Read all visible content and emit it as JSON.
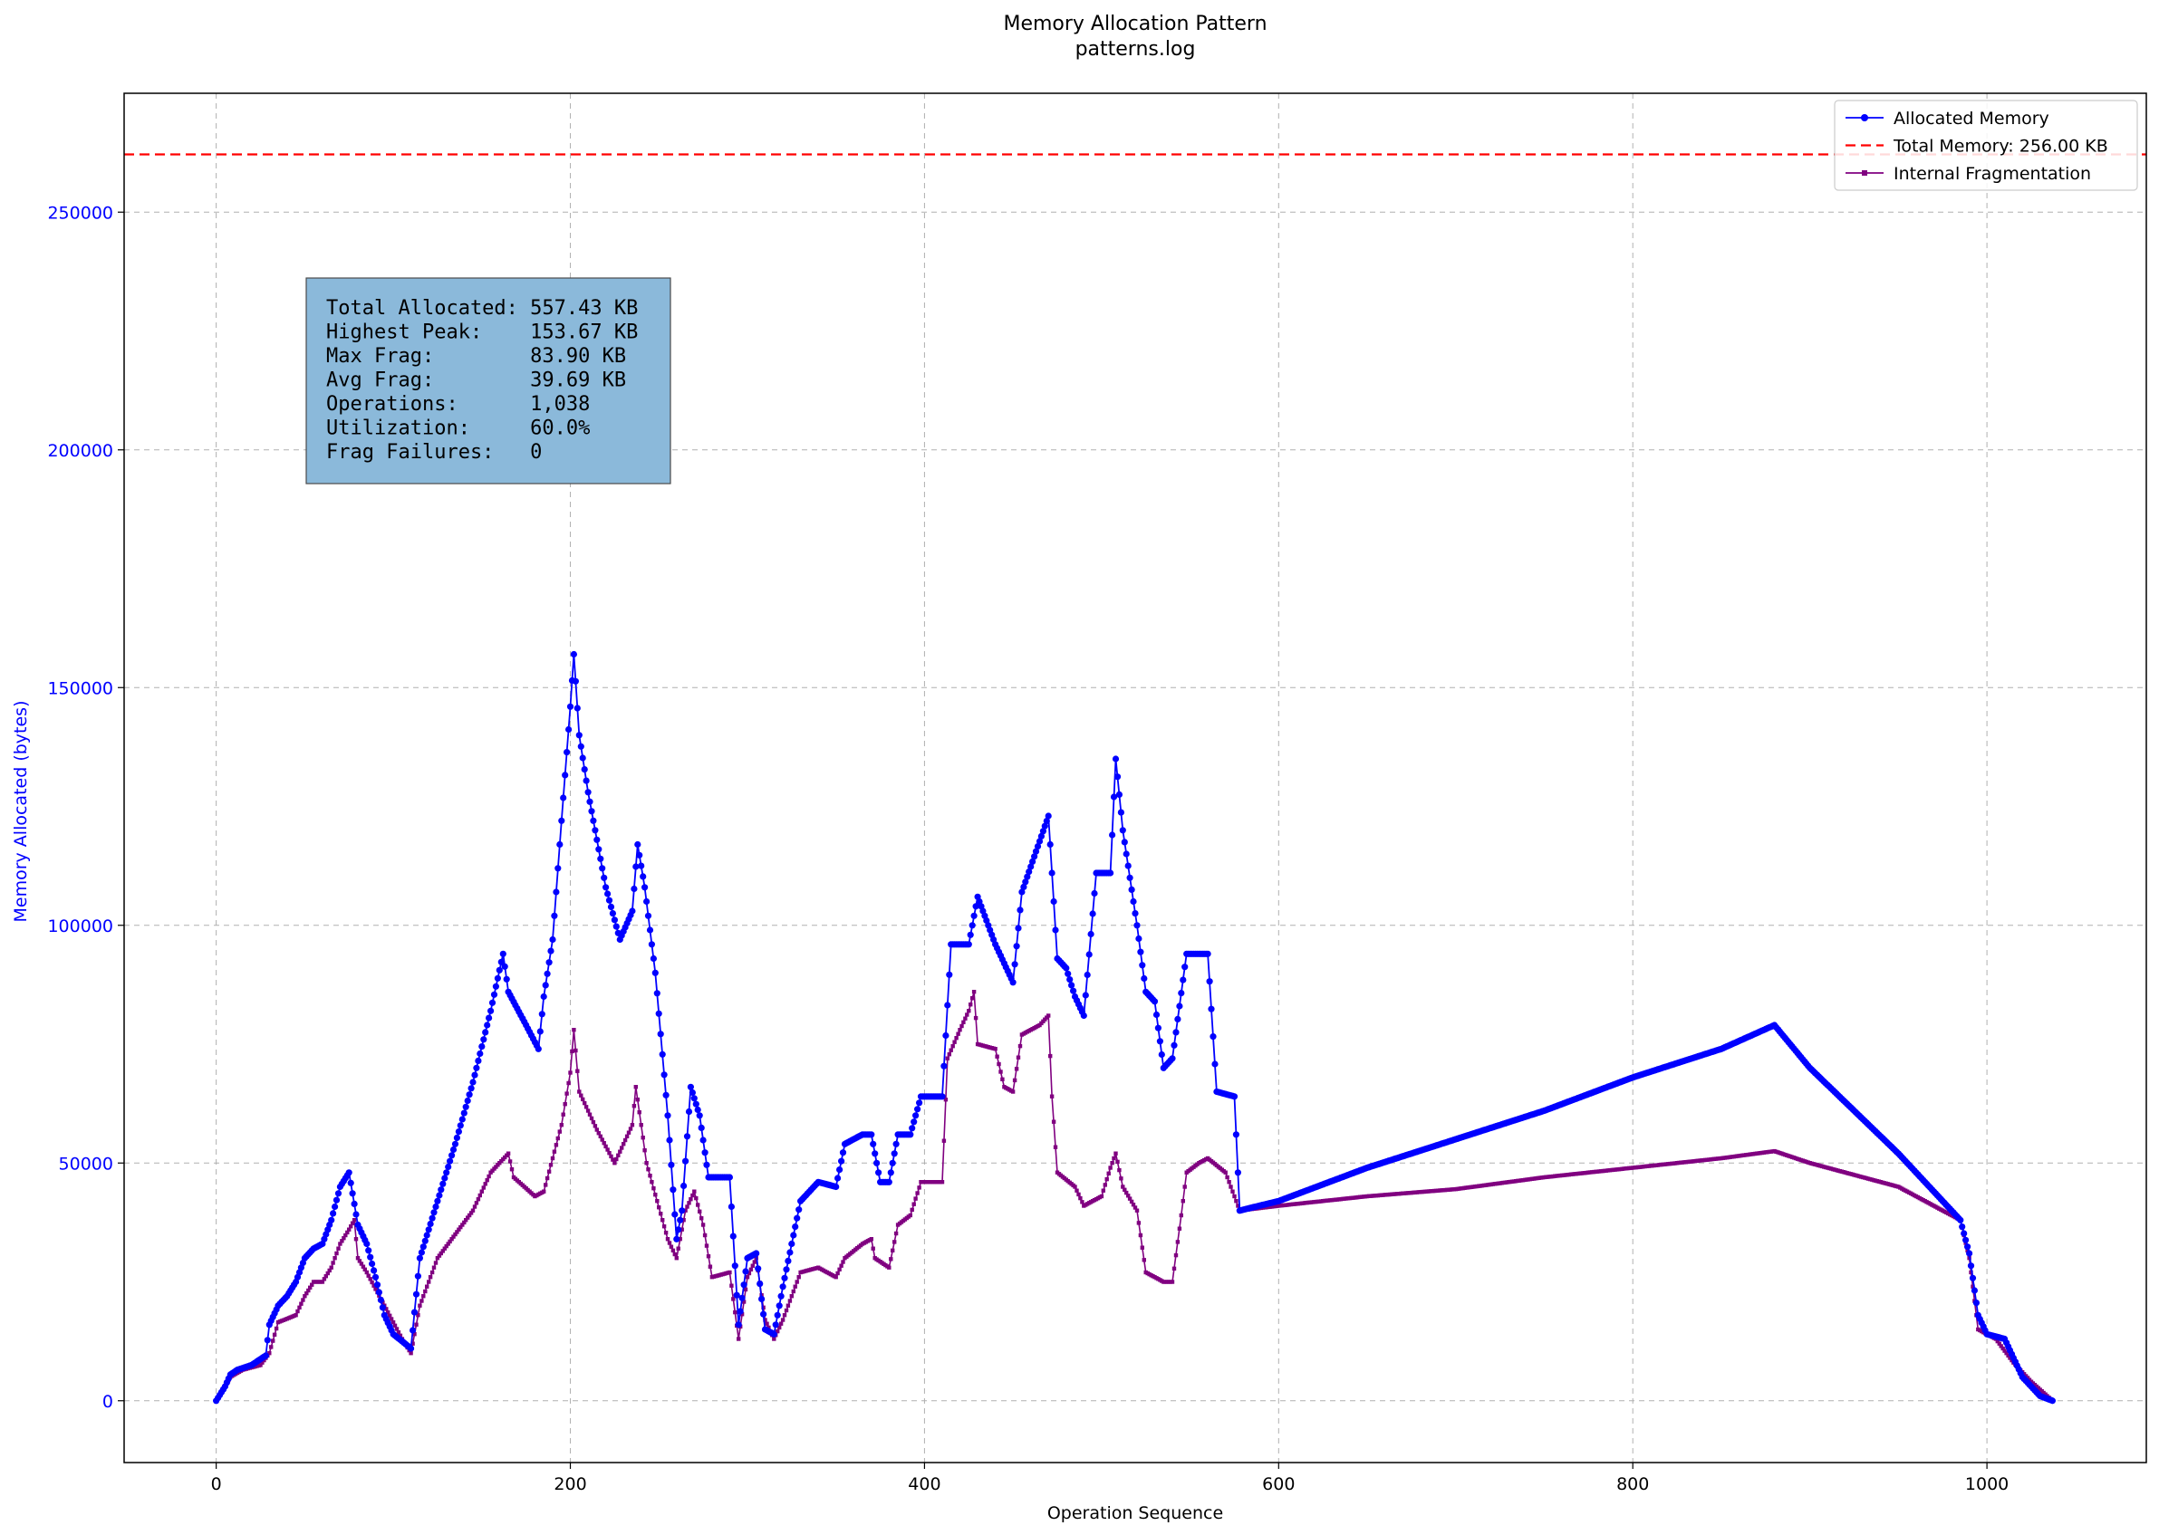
{
  "chart_data": {
    "type": "line",
    "title": "Memory Allocation Pattern",
    "subtitle": "patterns.log",
    "xlabel": "Operation Sequence",
    "ylabel": "Memory Allocated (bytes)",
    "xlim": [
      -52,
      1090
    ],
    "ylim": [
      -13000,
      275000
    ],
    "x_ticks": [
      0,
      200,
      400,
      600,
      800,
      1000
    ],
    "y_ticks": [
      0,
      50000,
      100000,
      150000,
      200000,
      250000
    ],
    "grid": true,
    "legend_position": "top-right",
    "colors": {
      "allocated": "#0000ff",
      "total": "#ff0000",
      "fragmentation": "#800080",
      "stats_box": "#8bb9da"
    },
    "reference_line": {
      "name": "Total Memory: 256.00 KB",
      "y": 262144,
      "style": "dashed"
    },
    "series": [
      {
        "name": "Allocated Memory",
        "marker": "circle",
        "points": [
          [
            0,
            0
          ],
          [
            5,
            3000
          ],
          [
            8,
            5500
          ],
          [
            12,
            6500
          ],
          [
            20,
            7500
          ],
          [
            28,
            9500
          ],
          [
            30,
            16000
          ],
          [
            35,
            20000
          ],
          [
            40,
            22000
          ],
          [
            45,
            25000
          ],
          [
            50,
            30000
          ],
          [
            55,
            32000
          ],
          [
            60,
            33000
          ],
          [
            65,
            38000
          ],
          [
            70,
            45000
          ],
          [
            75,
            48000
          ],
          [
            80,
            37000
          ],
          [
            85,
            33000
          ],
          [
            90,
            26000
          ],
          [
            95,
            18000
          ],
          [
            100,
            14000
          ],
          [
            110,
            11000
          ],
          [
            115,
            30000
          ],
          [
            125,
            42000
          ],
          [
            135,
            54000
          ],
          [
            145,
            67000
          ],
          [
            155,
            82000
          ],
          [
            162,
            94000
          ],
          [
            165,
            86000
          ],
          [
            175,
            79000
          ],
          [
            182,
            74000
          ],
          [
            185,
            85000
          ],
          [
            190,
            97000
          ],
          [
            195,
            122000
          ],
          [
            200,
            146000
          ],
          [
            202,
            157000
          ],
          [
            205,
            140000
          ],
          [
            210,
            128000
          ],
          [
            220,
            108000
          ],
          [
            228,
            97000
          ],
          [
            235,
            103000
          ],
          [
            238,
            117000
          ],
          [
            242,
            108000
          ],
          [
            248,
            90000
          ],
          [
            255,
            60000
          ],
          [
            260,
            34000
          ],
          [
            263,
            40000
          ],
          [
            268,
            66000
          ],
          [
            273,
            60000
          ],
          [
            278,
            47000
          ],
          [
            290,
            47000
          ],
          [
            295,
            16000
          ],
          [
            300,
            30000
          ],
          [
            305,
            31000
          ],
          [
            310,
            15000
          ],
          [
            315,
            14000
          ],
          [
            320,
            24000
          ],
          [
            330,
            42000
          ],
          [
            340,
            46000
          ],
          [
            350,
            45000
          ],
          [
            355,
            54000
          ],
          [
            365,
            56000
          ],
          [
            370,
            56000
          ],
          [
            375,
            46000
          ],
          [
            380,
            46000
          ],
          [
            385,
            56000
          ],
          [
            392,
            56000
          ],
          [
            398,
            64000
          ],
          [
            410,
            64000
          ],
          [
            415,
            96000
          ],
          [
            425,
            96000
          ],
          [
            430,
            106000
          ],
          [
            440,
            96000
          ],
          [
            450,
            88000
          ],
          [
            455,
            107000
          ],
          [
            470,
            123000
          ],
          [
            475,
            93000
          ],
          [
            480,
            91000
          ],
          [
            485,
            85000
          ],
          [
            490,
            81000
          ],
          [
            497,
            111000
          ],
          [
            505,
            111000
          ],
          [
            508,
            135000
          ],
          [
            512,
            120000
          ],
          [
            520,
            100000
          ],
          [
            525,
            86000
          ],
          [
            530,
            84000
          ],
          [
            535,
            70000
          ],
          [
            540,
            72000
          ],
          [
            548,
            94000
          ],
          [
            560,
            94000
          ],
          [
            565,
            65000
          ],
          [
            575,
            64000
          ],
          [
            578,
            40000
          ],
          [
            600,
            42000
          ],
          [
            650,
            49000
          ],
          [
            700,
            55000
          ],
          [
            750,
            61000
          ],
          [
            800,
            68000
          ],
          [
            850,
            74000
          ],
          [
            880,
            79000
          ],
          [
            900,
            70000
          ],
          [
            950,
            52000
          ],
          [
            985,
            38000
          ],
          [
            990,
            31000
          ],
          [
            995,
            18000
          ],
          [
            1000,
            14000
          ],
          [
            1010,
            13000
          ],
          [
            1020,
            5000
          ],
          [
            1030,
            1000
          ],
          [
            1037,
            0
          ]
        ]
      },
      {
        "name": "Internal Fragmentation",
        "marker": "square",
        "points": [
          [
            0,
            0
          ],
          [
            5,
            3000
          ],
          [
            8,
            5000
          ],
          [
            15,
            6500
          ],
          [
            25,
            7500
          ],
          [
            30,
            10000
          ],
          [
            35,
            16500
          ],
          [
            45,
            18000
          ],
          [
            50,
            22000
          ],
          [
            55,
            25000
          ],
          [
            60,
            25000
          ],
          [
            65,
            28000
          ],
          [
            70,
            33000
          ],
          [
            75,
            36000
          ],
          [
            78,
            38000
          ],
          [
            80,
            30000
          ],
          [
            85,
            27000
          ],
          [
            95,
            20000
          ],
          [
            105,
            13000
          ],
          [
            110,
            10000
          ],
          [
            115,
            20000
          ],
          [
            125,
            30000
          ],
          [
            135,
            35000
          ],
          [
            145,
            40000
          ],
          [
            155,
            48000
          ],
          [
            165,
            52000
          ],
          [
            168,
            47000
          ],
          [
            180,
            43000
          ],
          [
            185,
            44000
          ],
          [
            195,
            58000
          ],
          [
            200,
            69000
          ],
          [
            202,
            78000
          ],
          [
            205,
            65000
          ],
          [
            215,
            57000
          ],
          [
            225,
            50000
          ],
          [
            235,
            58000
          ],
          [
            237,
            66000
          ],
          [
            243,
            50000
          ],
          [
            255,
            34000
          ],
          [
            260,
            30000
          ],
          [
            265,
            40000
          ],
          [
            270,
            44000
          ],
          [
            275,
            37000
          ],
          [
            280,
            26000
          ],
          [
            290,
            27000
          ],
          [
            295,
            13000
          ],
          [
            300,
            26000
          ],
          [
            305,
            30000
          ],
          [
            310,
            17000
          ],
          [
            315,
            13000
          ],
          [
            320,
            17000
          ],
          [
            330,
            27000
          ],
          [
            340,
            28000
          ],
          [
            350,
            26000
          ],
          [
            355,
            30000
          ],
          [
            365,
            33000
          ],
          [
            370,
            34000
          ],
          [
            372,
            30000
          ],
          [
            380,
            28000
          ],
          [
            385,
            37000
          ],
          [
            392,
            39000
          ],
          [
            398,
            46000
          ],
          [
            410,
            46000
          ],
          [
            413,
            72000
          ],
          [
            420,
            78000
          ],
          [
            425,
            82000
          ],
          [
            428,
            86000
          ],
          [
            430,
            75000
          ],
          [
            440,
            74000
          ],
          [
            445,
            66000
          ],
          [
            450,
            65000
          ],
          [
            455,
            77000
          ],
          [
            465,
            79000
          ],
          [
            470,
            81000
          ],
          [
            472,
            64000
          ],
          [
            475,
            48000
          ],
          [
            485,
            45000
          ],
          [
            490,
            41000
          ],
          [
            495,
            42000
          ],
          [
            500,
            43000
          ],
          [
            505,
            49000
          ],
          [
            508,
            52000
          ],
          [
            512,
            45000
          ],
          [
            520,
            40000
          ],
          [
            525,
            27000
          ],
          [
            535,
            25000
          ],
          [
            540,
            25000
          ],
          [
            545,
            39000
          ],
          [
            548,
            48000
          ],
          [
            555,
            50000
          ],
          [
            560,
            51000
          ],
          [
            570,
            48000
          ],
          [
            578,
            40000
          ],
          [
            600,
            41000
          ],
          [
            650,
            43000
          ],
          [
            700,
            44500
          ],
          [
            750,
            47000
          ],
          [
            800,
            49000
          ],
          [
            850,
            51000
          ],
          [
            880,
            52500
          ],
          [
            900,
            50000
          ],
          [
            950,
            45000
          ],
          [
            985,
            38000
          ],
          [
            990,
            30000
          ],
          [
            995,
            15000
          ],
          [
            1005,
            13000
          ],
          [
            1015,
            8000
          ],
          [
            1025,
            4000
          ],
          [
            1037,
            0
          ]
        ]
      }
    ],
    "stats_box": [
      "Total Allocated: 557.43 KB",
      "Highest Peak:    153.67 KB",
      "Max Frag:        83.90 KB",
      "Avg Frag:        39.69 KB",
      "Operations:      1,038",
      "Utilization:     60.0%",
      "Frag Failures:   0"
    ]
  }
}
